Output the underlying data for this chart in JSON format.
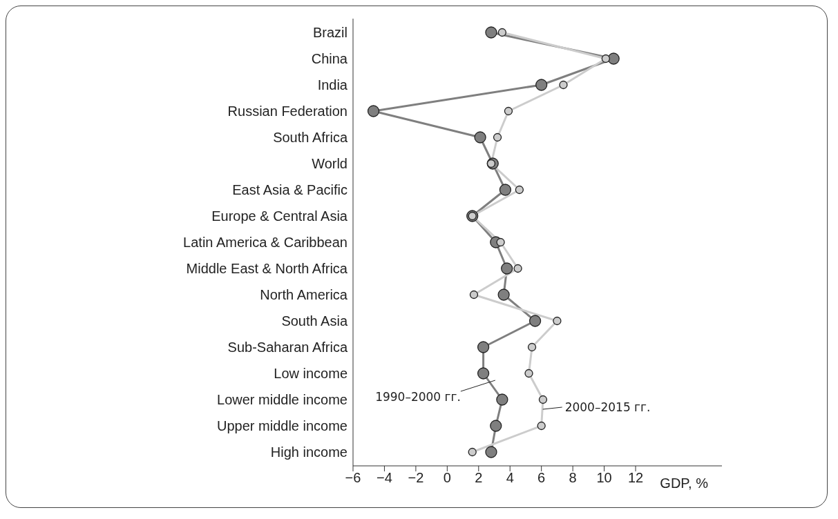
{
  "chart_data": {
    "type": "line",
    "orientation": "horizontal",
    "xlabel": "GDP, %",
    "categories": [
      "Brazil",
      "China",
      "India",
      "Russian Federation",
      "South Africa",
      "World",
      "East Asia & Pacific",
      "Europe & Central Asia",
      "Latin America & Caribbean",
      "Middle East & North Africa",
      "North America",
      "South Asia",
      "Sub-Saharan Africa",
      "Low income",
      "Lower middle income",
      "Upper middle income",
      "High income"
    ],
    "series": [
      {
        "name": "1990–2000 гг.",
        "color": "#7f7f7f",
        "values": [
          2.8,
          10.6,
          6.0,
          -4.7,
          2.1,
          2.9,
          3.7,
          1.6,
          3.1,
          3.8,
          3.6,
          5.6,
          2.3,
          2.3,
          3.5,
          3.1,
          2.8
        ]
      },
      {
        "name": "2000–2015 гг.",
        "color": "#cccccc",
        "values": [
          3.5,
          10.1,
          7.4,
          3.9,
          3.2,
          2.8,
          4.6,
          1.6,
          3.4,
          4.5,
          1.7,
          7.0,
          5.4,
          5.2,
          6.1,
          6.0,
          1.6
        ]
      }
    ],
    "xlim": [
      -6,
      17.5
    ],
    "xticks": [
      -6,
      -4,
      -2,
      0,
      2,
      4,
      6,
      8,
      10,
      12
    ],
    "marker": "circle",
    "line_style": "solid",
    "grid": false
  }
}
